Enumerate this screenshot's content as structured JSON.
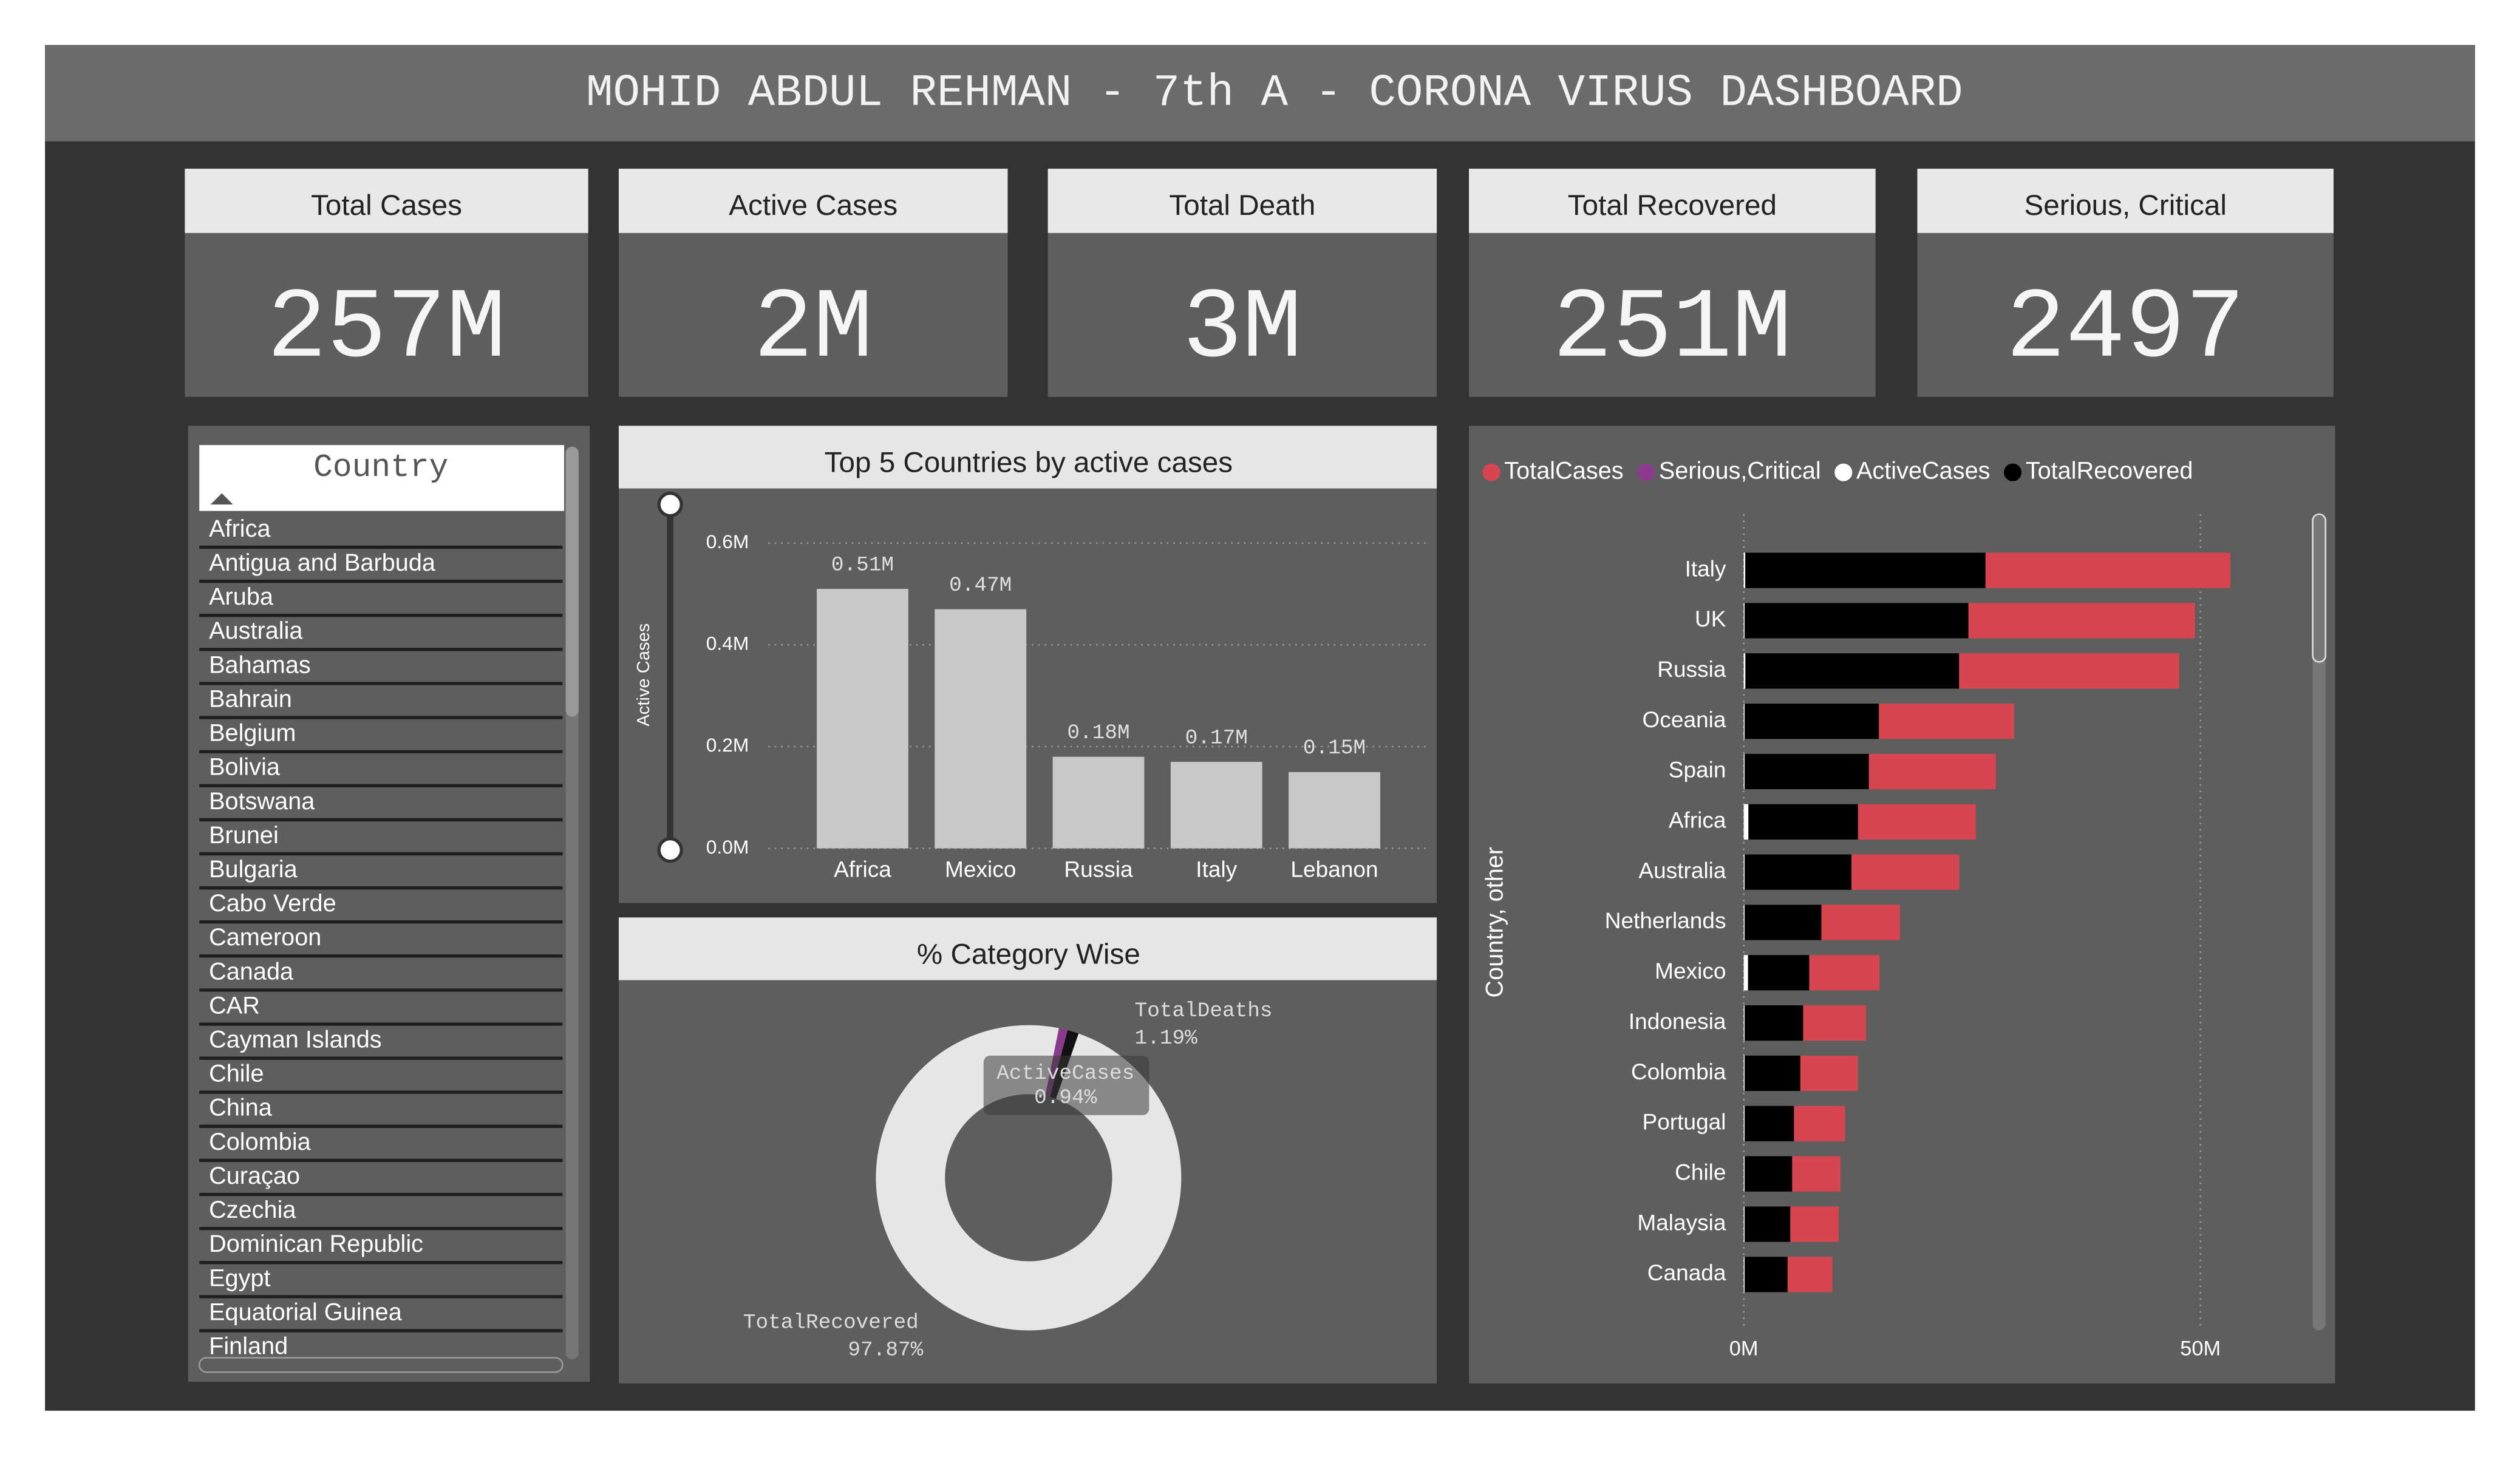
{
  "header": {
    "title": "MOHID ABDUL REHMAN - 7th A - CORONA VIRUS DASHBOARD"
  },
  "cards": [
    {
      "title": "Total Cases",
      "value": "257M"
    },
    {
      "title": "Active Cases",
      "value": "2M"
    },
    {
      "title": "Total Death",
      "value": "3M"
    },
    {
      "title": "Total Recovered",
      "value": "251M"
    },
    {
      "title": "Serious, Critical",
      "value": "2497"
    }
  ],
  "country_slicer": {
    "title": "Country",
    "items": [
      "Africa",
      "Antigua and Barbuda",
      "Aruba",
      "Australia",
      "Bahamas",
      "Bahrain",
      "Belgium",
      "Bolivia",
      "Botswana",
      "Brunei",
      "Bulgaria",
      "Cabo Verde",
      "Cameroon",
      "Canada",
      "CAR",
      "Cayman Islands",
      "Chile",
      "China",
      "Colombia",
      "Curaçao",
      "Czechia",
      "Dominican Republic",
      "Egypt",
      "Equatorial Guinea",
      "Finland"
    ]
  },
  "chart_data": [
    {
      "type": "bar",
      "title": "Top 5 Countries by active cases",
      "y_label": "Active Cases",
      "categories": [
        "Africa",
        "Mexico",
        "Russia",
        "Italy",
        "Lebanon"
      ],
      "values": [
        0.51,
        0.47,
        0.18,
        0.17,
        0.15
      ],
      "value_labels": [
        "0.51M",
        "0.47M",
        "0.18M",
        "0.17M",
        "0.15M"
      ],
      "color": "#c8c8c8",
      "ylim": [
        0,
        0.6
      ],
      "yticks": [
        {
          "value": 0,
          "label": "0.0M"
        },
        {
          "value": 0.2,
          "label": "0.2M"
        },
        {
          "value": 0.4,
          "label": "0.4M"
        },
        {
          "value": 0.6,
          "label": "0.6M"
        }
      ],
      "grid": true
    },
    {
      "type": "donut",
      "title": "% Category Wise",
      "categories": [
        "ActiveCases",
        "TotalDeaths",
        "TotalRecovered"
      ],
      "values": [
        0.94,
        1.19,
        97.87
      ],
      "value_labels": [
        "0.94%",
        "1.19%",
        "97.87%"
      ],
      "colors": [
        "#8a3a8a",
        "#111111",
        "#e6e6e6"
      ]
    },
    {
      "type": "stacked_bar_horizontal",
      "y_label": "Country, other",
      "categories": [
        "Italy",
        "UK",
        "Russia",
        "Oceania",
        "Spain",
        "Africa",
        "Australia",
        "Netherlands",
        "Mexico",
        "Indonesia",
        "Colombia",
        "Portugal",
        "Chile",
        "Malaysia",
        "Canada"
      ],
      "series": [
        {
          "name": "TotalCases",
          "color": "#d64550",
          "values": [
            26.8,
            24.8,
            24.1,
            14.8,
            13.9,
            12.9,
            11.8,
            8.6,
            7.7,
            6.9,
            6.3,
            5.6,
            5.3,
            5.3,
            4.9
          ]
        },
        {
          "name": "Serious,Critical",
          "color": "#8e3a8e",
          "values": [
            0,
            0,
            0,
            0,
            0,
            0,
            0,
            0,
            0,
            0,
            0,
            0,
            0,
            0,
            0
          ]
        },
        {
          "name": "ActiveCases",
          "color": "#ffffff",
          "values": [
            0.17,
            0.1,
            0.18,
            0.1,
            0.1,
            0.51,
            0.1,
            0.1,
            0.47,
            0.1,
            0.1,
            0.1,
            0.1,
            0.1,
            0.1
          ]
        },
        {
          "name": "TotalRecovered",
          "color": "#000000",
          "values": [
            26.3,
            24.5,
            23.4,
            14.7,
            13.6,
            12.0,
            11.7,
            8.4,
            6.7,
            6.4,
            6.1,
            5.4,
            5.2,
            5.0,
            4.7
          ]
        }
      ],
      "xlim": [
        0,
        60
      ],
      "xticks": [
        {
          "value": 0,
          "label": "0M"
        },
        {
          "value": 50,
          "label": "50M"
        }
      ],
      "grid": true,
      "legend": "top"
    }
  ]
}
